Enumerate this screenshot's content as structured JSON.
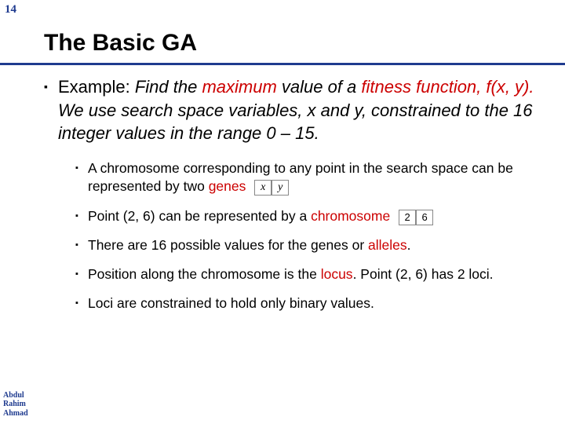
{
  "slide_number": "14",
  "title": "The Basic GA",
  "main_bullet": {
    "lead": "Example: ",
    "italic_a": "Find the ",
    "maximum": "maximum",
    "italic_b": " value of a ",
    "fitness_fn": "fitness function, f(x, y).",
    "italic_c": " We use search space variables, x and y, constrained to the 16 integer values in the range 0 – 15."
  },
  "subs": {
    "s1a": "A chromosome corresponding to any point in the search space can be represented by two ",
    "s1_genes": "genes",
    "gene_box_x": "x",
    "gene_box_y": "y",
    "s2a": "Point (2, 6) can be represented by a ",
    "s2_chrom": "chromosome",
    "gene_box_2": "2",
    "gene_box_6": "6",
    "s3a": "There are 16 possible values for the genes or ",
    "s3_alleles": "alleles",
    "s3b": ".",
    "s4a": "Position along the chromosome is the ",
    "s4_locus": "locus",
    "s4b": ". Point (2, 6) has 2 loci.",
    "s5": "Loci are constrained to hold only binary values."
  },
  "author": {
    "l1": "Abdul",
    "l2": "Rahim",
    "l3": "Ahmad"
  },
  "colors": {
    "accent": "#1f3b8f",
    "red": "#cc0000"
  }
}
